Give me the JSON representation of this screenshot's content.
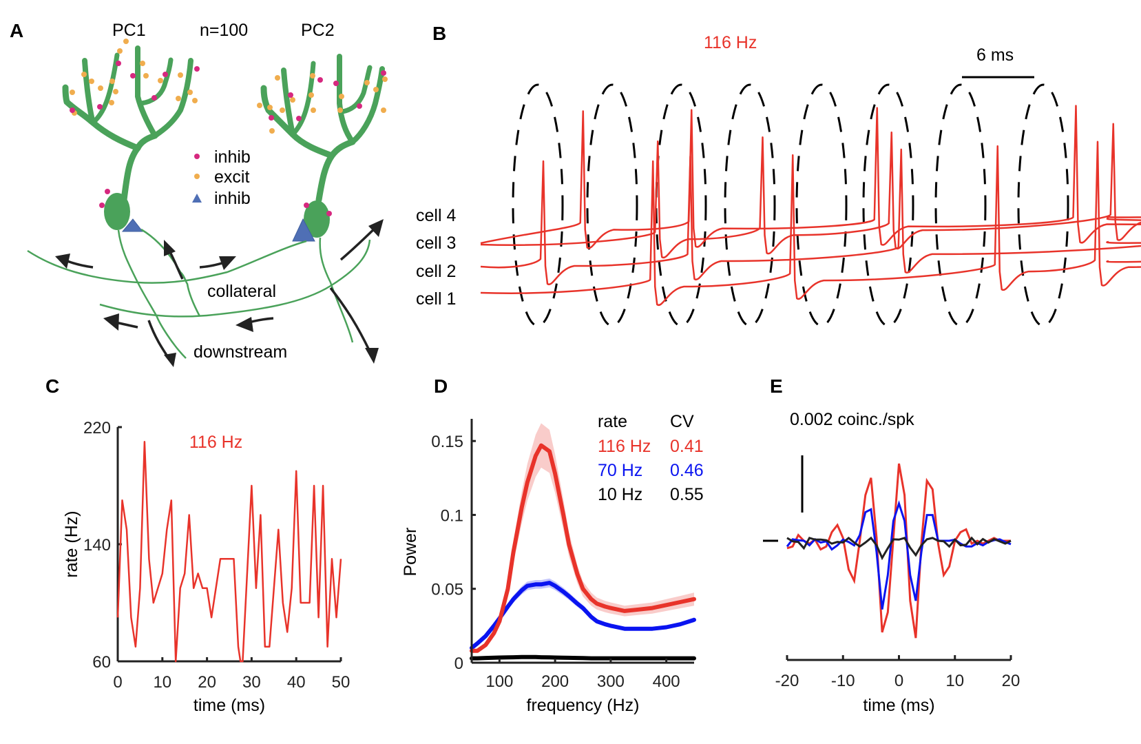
{
  "figure": {
    "panel_labels": [
      "A",
      "B",
      "C",
      "D",
      "E"
    ],
    "colors": {
      "red": "#e8332a",
      "blue": "#0a14f0",
      "black": "#222222",
      "green": "#4aa25a",
      "magenta": "#d6287f",
      "orange": "#f0ad4e",
      "triangle": "#4f6fb5"
    }
  },
  "panelA": {
    "pc1_label": "PC1",
    "n_label": "n=100",
    "pc2_label": "PC2",
    "legend": [
      {
        "marker": "magenta-dot",
        "label": "inhib"
      },
      {
        "marker": "orange-dot",
        "label": "excit"
      },
      {
        "marker": "blue-triangle",
        "label": "inhib"
      }
    ],
    "collateral_label": "collateral",
    "downstream_label": "downstream"
  },
  "panelB": {
    "rate_label": "116 Hz",
    "scalebar_label": "6 ms",
    "scalebar_ms": 6,
    "cells": [
      "cell 4",
      "cell 3",
      "cell 2",
      "cell 1"
    ],
    "synchrony_windows": 8,
    "spikes": [
      {
        "cell": "cell 2",
        "t_ms": 5.2
      },
      {
        "cell": "cell 4",
        "t_ms": 8.5
      },
      {
        "cell": "cell 1",
        "t_ms": 14.3
      },
      {
        "cell": "cell 3",
        "t_ms": 14.7
      },
      {
        "cell": "cell 4",
        "t_ms": 17.5
      },
      {
        "cell": "cell 2",
        "t_ms": 17.4
      },
      {
        "cell": "cell 3",
        "t_ms": 23.4
      },
      {
        "cell": "cell 1",
        "t_ms": 25.9
      },
      {
        "cell": "cell 4",
        "t_ms": 32.9
      },
      {
        "cell": "cell 3",
        "t_ms": 34.1
      },
      {
        "cell": "cell 2",
        "t_ms": 34.9
      },
      {
        "cell": "cell 1",
        "t_ms": 42.9
      },
      {
        "cell": "cell 4",
        "t_ms": 49.4
      },
      {
        "cell": "cell 1",
        "t_ms": 51.2
      },
      {
        "cell": "cell 3",
        "t_ms": 52.5
      },
      {
        "cell": "cell 2",
        "t_ms": 60.0
      },
      {
        "cell": "cell 1",
        "t_ms": 60.6
      },
      {
        "cell": "cell 4",
        "t_ms": 67.6
      },
      {
        "cell": "cell 3",
        "t_ms": 70.2
      },
      {
        "cell": "cell 2",
        "t_ms": 70.5
      },
      {
        "cell": "cell 1",
        "t_ms": 72.0
      },
      {
        "cell": "cell 4",
        "t_ms": 76.0
      }
    ]
  },
  "chart_data": [
    {
      "panel": "C",
      "type": "line",
      "title": "116 Hz",
      "xlabel": "time (ms)",
      "ylabel": "rate (Hz)",
      "xlim": [
        0,
        50
      ],
      "ylim": [
        60,
        220
      ],
      "xticks": [
        0,
        10,
        20,
        30,
        40,
        50
      ],
      "yticks": [
        60,
        140,
        220
      ],
      "series": [
        {
          "name": "116 Hz",
          "color": "#e8332a",
          "x": [
            0,
            1,
            2,
            3,
            4,
            5,
            6,
            7,
            8,
            10,
            11,
            12,
            13,
            14,
            15,
            16,
            17,
            18,
            19,
            20,
            21,
            23,
            26,
            27,
            27.5,
            28,
            30,
            31,
            32,
            33,
            34,
            36,
            37,
            38,
            39,
            40,
            41,
            43,
            44,
            45,
            46,
            47,
            48,
            49,
            50
          ],
          "y": [
            90,
            170,
            150,
            90,
            70,
            110,
            210,
            130,
            100,
            120,
            150,
            170,
            60,
            110,
            120,
            160,
            110,
            120,
            110,
            110,
            90,
            130,
            130,
            70,
            60,
            60,
            180,
            110,
            160,
            70,
            70,
            150,
            100,
            80,
            110,
            190,
            100,
            100,
            180,
            90,
            180,
            70,
            130,
            90,
            130
          ]
        }
      ]
    },
    {
      "panel": "D",
      "type": "line",
      "title": "",
      "xlabel": "frequency (Hz)",
      "ylabel": "Power",
      "xlim": [
        50,
        450
      ],
      "ylim": [
        0,
        0.165
      ],
      "xticks": [
        100,
        200,
        300,
        400
      ],
      "yticks": [
        0,
        0.05,
        0.1,
        0.15
      ],
      "legend": {
        "position": "top-right",
        "header": [
          "rate",
          "CV"
        ],
        "entries": [
          {
            "rate": "116 Hz",
            "cv": "0.41",
            "color": "#e8332a"
          },
          {
            "rate": "70 Hz",
            "cv": "0.46",
            "color": "#0a14f0"
          },
          {
            "rate": "10 Hz",
            "cv": "0.55",
            "color": "#000000"
          }
        ]
      },
      "x": [
        50,
        60,
        75,
        90,
        100,
        115,
        125,
        140,
        150,
        165,
        175,
        190,
        200,
        215,
        225,
        240,
        250,
        265,
        275,
        290,
        300,
        325,
        350,
        375,
        400,
        425,
        450
      ],
      "series": [
        {
          "name": "116 Hz",
          "color": "#e8332a",
          "band": 0.015,
          "values": [
            0.008,
            0.008,
            0.012,
            0.02,
            0.028,
            0.05,
            0.075,
            0.105,
            0.122,
            0.14,
            0.147,
            0.143,
            0.128,
            0.1,
            0.08,
            0.06,
            0.05,
            0.043,
            0.04,
            0.038,
            0.037,
            0.035,
            0.036,
            0.037,
            0.039,
            0.041,
            0.043
          ]
        },
        {
          "name": "70 Hz",
          "color": "#0a14f0",
          "band": 0.003,
          "values": [
            0.01,
            0.013,
            0.018,
            0.025,
            0.03,
            0.038,
            0.043,
            0.049,
            0.052,
            0.053,
            0.053,
            0.054,
            0.052,
            0.048,
            0.045,
            0.04,
            0.037,
            0.031,
            0.028,
            0.026,
            0.025,
            0.023,
            0.023,
            0.023,
            0.024,
            0.026,
            0.029
          ]
        },
        {
          "name": "10 Hz",
          "color": "#000000",
          "band": 0.0005,
          "values": [
            0.003,
            0.003,
            0.0032,
            0.0034,
            0.0035,
            0.0036,
            0.0037,
            0.0038,
            0.0038,
            0.0038,
            0.0037,
            0.0036,
            0.0035,
            0.0034,
            0.0033,
            0.0032,
            0.0031,
            0.003,
            0.003,
            0.003,
            0.003,
            0.003,
            0.003,
            0.003,
            0.003,
            0.003,
            0.003
          ]
        }
      ]
    },
    {
      "panel": "E",
      "type": "line",
      "title": "0.002 coinc./spk",
      "xlabel": "time (ms)",
      "ylabel": "",
      "xlim": [
        -20,
        20
      ],
      "ylim": [
        -0.0045,
        0.005
      ],
      "xticks": [
        -20,
        -10,
        0,
        10,
        20
      ],
      "scalebar_value": 0.002,
      "x": [
        -20,
        -19,
        -18,
        -17,
        -16,
        -15,
        -14,
        -13,
        -12,
        -11,
        -10,
        -9,
        -8,
        -7,
        -6,
        -5,
        -4,
        -3,
        -2,
        -1,
        0,
        1,
        2,
        3,
        4,
        5,
        6,
        7,
        8,
        9,
        10,
        11,
        12,
        13,
        14,
        15,
        16,
        17,
        18,
        19,
        20
      ],
      "series": [
        {
          "name": "116 Hz",
          "color": "#e8332a",
          "values": [
            -0.00026,
            -0.0002,
            0.0002,
            0,
            -0.0001,
            4e-05,
            -0.0003,
            -0.0002,
            0.0003,
            0.00055,
            0.0001,
            -0.001,
            -0.0014,
            0,
            0.0016,
            0.0022,
            0.0001,
            -0.0032,
            -0.0025,
            0.0001,
            0.0027,
            0.0016,
            -0.0021,
            -0.0034,
            -0.0001,
            0.0021,
            0.0018,
            -0.0001,
            -0.0012,
            -0.0009,
            0,
            0.0003,
            0.0004,
            -0.0001,
            0,
            -0.0001,
            0,
            0.0001,
            0,
            0,
            0
          ]
        },
        {
          "name": "70 Hz",
          "color": "#0a14f0",
          "values": [
            -0.0002,
            5e-05,
            2e-05,
            0,
            -0.00016,
            5e-05,
            -6e-05,
            -2e-05,
            -0.0003,
            -0.00016,
            4e-05,
            -4e-05,
            -0.00016,
            0.0002,
            0.001,
            0.0011,
            -0.0004,
            -0.0024,
            -0.0012,
            0.0007,
            0.0013,
            0.0007,
            -0.0012,
            -0.0021,
            -0.0004,
            0.0009,
            0.0009,
            0,
            0,
            0,
            4e-05,
            -0.0001,
            -0.0002,
            -0.0002,
            -8e-05,
            -0.00016,
            -4e-05,
            2e-05,
            5e-05,
            -4e-05,
            -0.00012
          ]
        },
        {
          "name": "10 Hz",
          "color": "#222222",
          "values": [
            0.0001,
            -2e-05,
            -4e-05,
            -0.00026,
            0.0001,
            4e-05,
            4e-05,
            2e-05,
            -0.0001,
            -4e-05,
            -6e-05,
            0.0001,
            -6e-05,
            -0.0002,
            -6e-05,
            0.0001,
            -0.00016,
            -0.0006,
            -0.00026,
            5e-05,
            4e-05,
            0.0001,
            -0.00024,
            -0.0005,
            -0.00016,
            5e-05,
            0.0001,
            0,
            -2e-05,
            -0.0002,
            4e-05,
            -0.00016,
            -0.00014,
            0.0001,
            -0.00012,
            6e-05,
            -6e-05,
            6e-05,
            -2e-05,
            -0.0001,
            0
          ]
        }
      ]
    }
  ]
}
